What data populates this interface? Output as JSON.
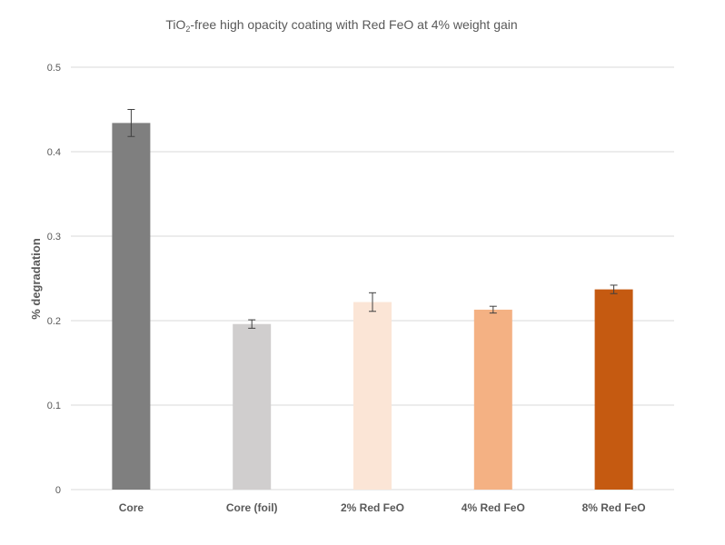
{
  "chart_data": {
    "type": "bar",
    "title": {
      "prefix": "TiO",
      "subscript": "2",
      "suffix": "-free high opacity coating with  Red FeO at 4% weight gain"
    },
    "xlabel": "",
    "ylabel": "% degradation",
    "ylim": [
      0,
      0.5
    ],
    "yticks": [
      {
        "value": 0,
        "label": "0"
      },
      {
        "value": 0.1,
        "label": "0.1"
      },
      {
        "value": 0.2,
        "label": "0.2"
      },
      {
        "value": 0.3,
        "label": "0.3"
      },
      {
        "value": 0.4,
        "label": "0.4"
      },
      {
        "value": 0.5,
        "label": "0.5"
      }
    ],
    "grid": true,
    "legend": "none",
    "categories": [
      "Core",
      "Core (foil)",
      "2% Red FeO",
      "4% Red FeO",
      "8% Red FeO"
    ],
    "values": [
      0.434,
      0.196,
      0.222,
      0.213,
      0.237
    ],
    "errors": [
      0.016,
      0.005,
      0.011,
      0.004,
      0.005
    ],
    "colors": [
      "#7f7f7f",
      "#d0cece",
      "#fbe5d6",
      "#f4b183",
      "#c55a11"
    ]
  }
}
